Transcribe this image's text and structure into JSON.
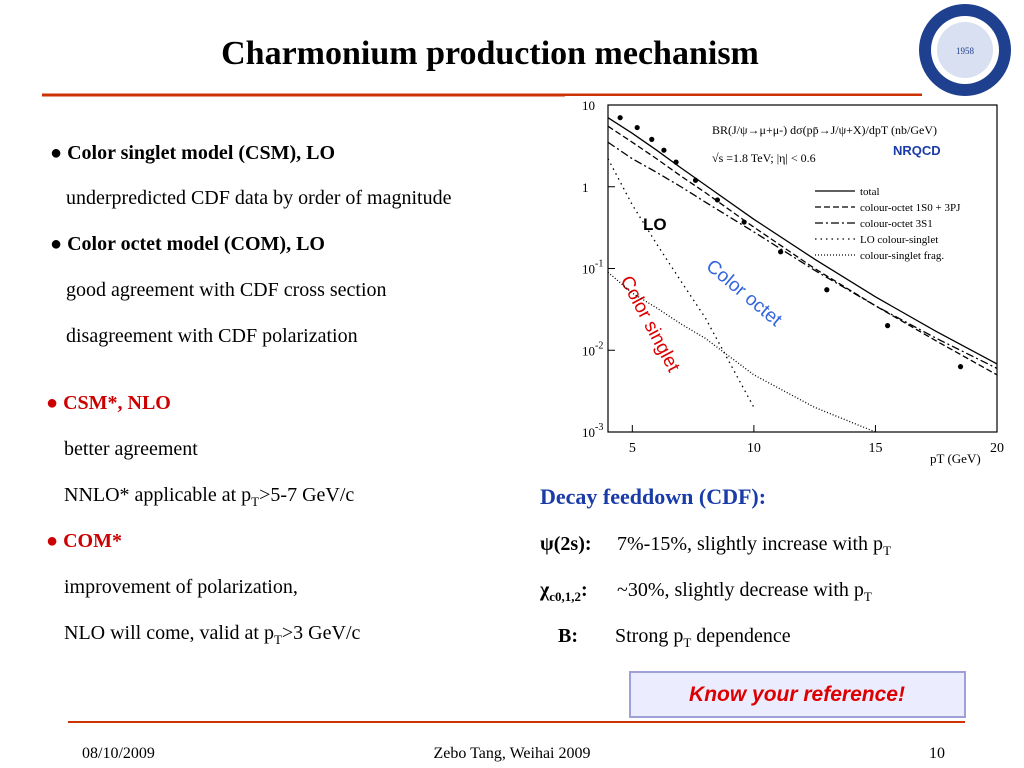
{
  "header": {
    "title": "Charmonium production mechanism"
  },
  "logo": {
    "year": "1958"
  },
  "left": {
    "lines": [
      {
        "parts": [
          "● Color singlet model (CSM), LO"
        ]
      },
      {
        "parts": [
          "underpredicted CDF data by order of magnitude"
        ]
      },
      {
        "parts": [
          "● Color octet model (COM), LO"
        ]
      },
      {
        "parts": [
          "good agreement with CDF cross section"
        ]
      },
      {
        "parts": [
          "disagreement with CDF polarization"
        ]
      },
      {
        "parts": [
          "● CSM*, NLO"
        ]
      },
      {
        "parts": [
          "better agreement"
        ]
      },
      {
        "parts": [
          "NNLO* applicable at p",
          "T",
          ">5-7 GeV/c"
        ]
      },
      {
        "parts": [
          "● COM*"
        ]
      },
      {
        "parts": [
          "improvement of polarization,"
        ]
      },
      {
        "parts": [
          "NLO will come, valid at p",
          "T",
          ">3 GeV/c"
        ]
      }
    ]
  },
  "feeddown": {
    "title": "Decay feeddown (CDF):",
    "rows": [
      {
        "label": [
          "ψ(2s):"
        ],
        "text": [
          "7%-15%, slightly increase with p",
          "T"
        ]
      },
      {
        "label": [
          "χ",
          "c0,1,2",
          ":"
        ],
        "text": [
          "~30%, slightly decrease with p",
          "T"
        ]
      },
      {
        "label": [
          "B:"
        ],
        "text": [
          "Strong p",
          "T",
          " dependence"
        ]
      }
    ]
  },
  "note": "Know your reference!",
  "footer": {
    "date": "08/10/2009",
    "author": "Zebo Tang, Weihai 2009",
    "page": "10"
  },
  "chart_data": {
    "type": "line",
    "title": "BR(J/ψ→μ+μ-) dσ(pp̄→J/ψ+X)/dpT (nb/GeV)",
    "subtitle": "√s =1.8 TeV; |η| < 0.6",
    "x_label": "pT (GeV)",
    "annotations": [
      "NRQCD",
      "LO",
      "Color octet",
      "Color singlet"
    ],
    "log_y": true,
    "legend": "upper right",
    "xlim": [
      4,
      20
    ],
    "xticks": [
      5,
      10,
      15,
      20
    ],
    "ylim": [
      0.001,
      10
    ],
    "yticks": [
      {
        "value": 10,
        "label": "10"
      },
      1,
      {
        "value": 0.1,
        "label": "10",
        "exponent": "-1"
      },
      {
        "value": 0.01,
        "label": "10",
        "exponent": "-2"
      },
      {
        "value": 0.001,
        "label": "10",
        "exponent": "-3"
      }
    ],
    "x": [
      4,
      5,
      6,
      7,
      8,
      10,
      12.5,
      15,
      17.5,
      20
    ],
    "series": [
      {
        "name": "total",
        "color": "#000000",
        "dash": "none",
        "values": [
          7,
          4.5,
          2.8,
          1.7,
          1.05,
          0.4,
          0.13,
          0.045,
          0.017,
          0.0068
        ]
      },
      {
        "name": "colour-octet 1S0 + 3PJ",
        "color": "#000000",
        "dash": "6,3",
        "values": [
          5.5,
          3.5,
          2.2,
          1.35,
          0.85,
          0.32,
          0.1,
          0.035,
          0.013,
          0.005
        ]
      },
      {
        "name": "colour-octet 3S1",
        "color": "#000000",
        "dash": "8,3,2,3",
        "values": [
          3.5,
          2.2,
          1.5,
          1.0,
          0.65,
          0.28,
          0.095,
          0.035,
          0.014,
          0.006
        ]
      },
      {
        "name": "LO colour-singlet",
        "color": "#000000",
        "dash": "1.5,4",
        "values": [
          2.2,
          0.6,
          0.2,
          0.07,
          0.025,
          0.002,
          null,
          null,
          null,
          null
        ]
      },
      {
        "name": "colour-singlet frag.",
        "color": "#000000",
        "dash": "1,2",
        "values": [
          0.09,
          0.05,
          0.033,
          0.021,
          0.014,
          0.005,
          0.002,
          0.001,
          null,
          null
        ]
      }
    ],
    "points": {
      "color": "#000000",
      "x": [
        4.5,
        5.2,
        5.8,
        6.3,
        6.8,
        7.6,
        8.5,
        9.6,
        11.1,
        13.0,
        15.5,
        18.5
      ],
      "values": [
        7.0,
        5.3,
        3.8,
        2.8,
        2.0,
        1.2,
        0.69,
        0.37,
        0.16,
        0.055,
        0.02,
        0.0063
      ]
    }
  }
}
